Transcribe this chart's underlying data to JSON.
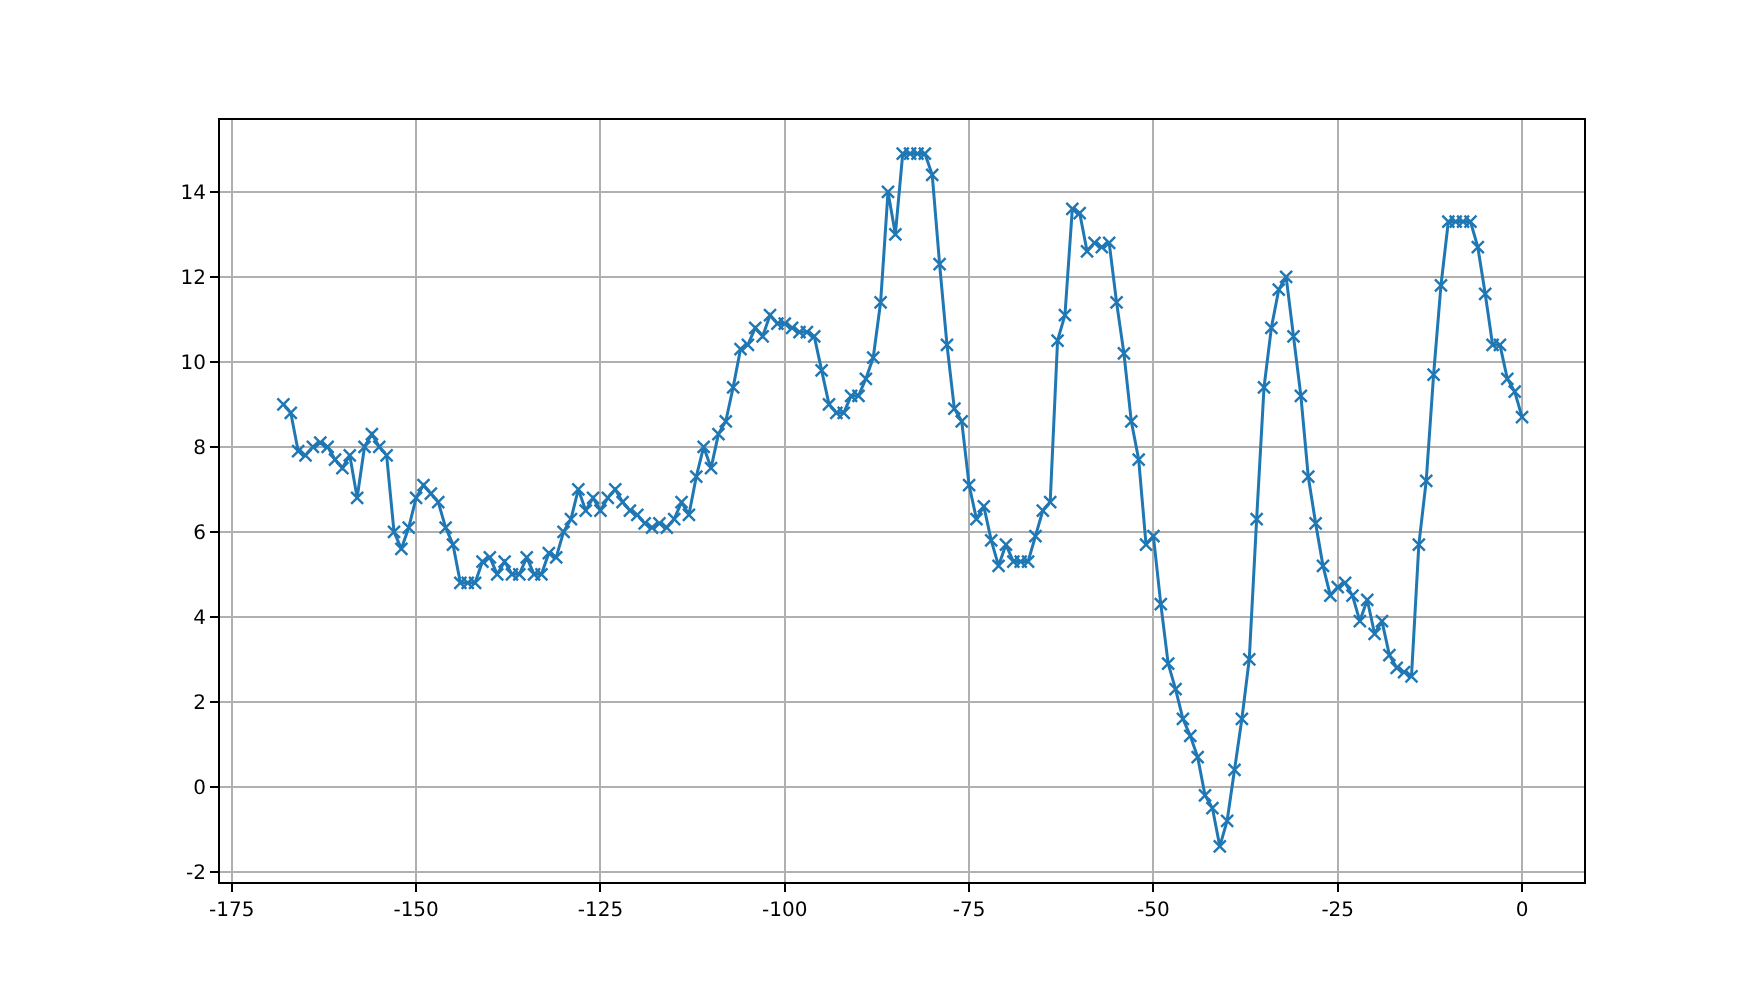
{
  "chart_data": {
    "type": "line",
    "marker": "cross",
    "line_style": "solid",
    "grid": true,
    "xlim": [
      -176.6,
      8.4
    ],
    "xticks": [
      -175,
      -150,
      -125,
      -100,
      -75,
      -50,
      -25,
      0
    ],
    "ylim": [
      -2.24,
      15.69
    ],
    "yticks": [
      -2,
      0,
      2,
      4,
      6,
      8,
      10,
      12,
      14
    ],
    "x": [
      -168,
      -167,
      -166,
      -165,
      -164,
      -163,
      -162,
      -161,
      -160,
      -159,
      -158,
      -157,
      -156,
      -155,
      -154,
      -153,
      -152,
      -151,
      -150,
      -149,
      -148,
      -147,
      -146,
      -145,
      -144,
      -143,
      -142,
      -141,
      -140,
      -139,
      -138,
      -137,
      -136,
      -135,
      -134,
      -133,
      -132,
      -131,
      -130,
      -129,
      -128,
      -127,
      -126,
      -125,
      -124,
      -123,
      -122,
      -121,
      -120,
      -119,
      -118,
      -117,
      -116,
      -115,
      -114,
      -113,
      -112,
      -111,
      -110,
      -109,
      -108,
      -107,
      -106,
      -105,
      -104,
      -103,
      -102,
      -101,
      -100,
      -99,
      -98,
      -97,
      -96,
      -95,
      -94,
      -93,
      -92,
      -91,
      -90,
      -89,
      -88,
      -87,
      -86,
      -85,
      -84,
      -83,
      -82,
      -81,
      -80,
      -79,
      -78,
      -77,
      -76,
      -75,
      -74,
      -73,
      -72,
      -71,
      -70,
      -69,
      -68,
      -67,
      -66,
      -65,
      -64,
      -63,
      -62,
      -61,
      -60,
      -59,
      -58,
      -57,
      -56,
      -55,
      -54,
      -53,
      -52,
      -51,
      -50,
      -49,
      -48,
      -47,
      -46,
      -45,
      -44,
      -43,
      -42,
      -41,
      -40,
      -39,
      -38,
      -37,
      -36,
      -35,
      -34,
      -33,
      -32,
      -31,
      -30,
      -29,
      -28,
      -27,
      -26,
      -25,
      -24,
      -23,
      -22,
      -21,
      -20,
      -19,
      -18,
      -17,
      -16,
      -15,
      -14,
      -13,
      -12,
      -11,
      -10,
      -9,
      -8,
      -7,
      -6,
      -5,
      -4,
      -3,
      -2,
      -1,
      0
    ],
    "series": [
      {
        "color": "#1f77b4",
        "values": [
          9.0,
          8.8,
          7.9,
          7.8,
          8.0,
          8.1,
          8.0,
          7.7,
          7.5,
          7.8,
          6.8,
          8.0,
          8.3,
          8.0,
          7.8,
          6.0,
          5.6,
          6.1,
          6.8,
          7.1,
          6.9,
          6.7,
          6.1,
          5.7,
          4.8,
          4.8,
          4.8,
          5.3,
          5.4,
          5.0,
          5.3,
          5.0,
          5.0,
          5.4,
          5.0,
          5.0,
          5.5,
          5.4,
          6.0,
          6.3,
          7.0,
          6.5,
          6.8,
          6.5,
          6.8,
          7.0,
          6.7,
          6.5,
          6.4,
          6.2,
          6.1,
          6.2,
          6.1,
          6.3,
          6.7,
          6.4,
          7.3,
          8.0,
          7.5,
          8.3,
          8.6,
          9.4,
          10.3,
          10.4,
          10.8,
          10.6,
          11.1,
          10.9,
          10.9,
          10.8,
          10.7,
          10.7,
          10.6,
          9.8,
          9.0,
          8.8,
          8.8,
          9.2,
          9.2,
          9.6,
          10.1,
          11.4,
          14.0,
          13.0,
          14.9,
          14.9,
          14.9,
          14.9,
          14.4,
          12.3,
          10.4,
          8.9,
          8.6,
          7.1,
          6.3,
          6.6,
          5.8,
          5.2,
          5.7,
          5.3,
          5.3,
          5.3,
          5.9,
          6.5,
          6.7,
          10.5,
          11.1,
          13.6,
          13.5,
          12.6,
          12.8,
          12.7,
          12.8,
          11.4,
          10.2,
          8.6,
          7.7,
          5.7,
          5.9,
          4.3,
          2.9,
          2.3,
          1.6,
          1.2,
          0.7,
          -0.2,
          -0.5,
          -1.4,
          -0.8,
          0.4,
          1.6,
          3.0,
          6.3,
          9.4,
          10.8,
          11.7,
          12.0,
          10.6,
          9.2,
          7.3,
          6.2,
          5.2,
          4.5,
          4.7,
          4.8,
          4.5,
          3.9,
          4.4,
          3.6,
          3.9,
          3.1,
          2.8,
          2.7,
          2.6,
          5.7,
          7.2,
          9.7,
          11.8,
          13.3,
          13.3,
          13.3,
          13.3,
          12.7,
          11.6,
          10.4,
          10.4,
          9.6,
          9.3,
          8.7
        ]
      }
    ]
  }
}
